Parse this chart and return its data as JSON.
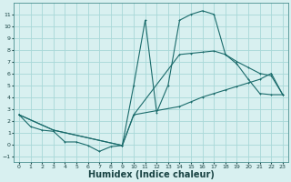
{
  "background_color": "#d8f0f0",
  "grid_color": "#a8d8d8",
  "line_color": "#1a6b6b",
  "xlabel": "Humidex (Indice chaleur)",
  "xlabel_fontsize": 7,
  "ylim": [
    -1.5,
    12
  ],
  "xlim": [
    -0.5,
    23.5
  ],
  "yticks": [
    -1,
    0,
    1,
    2,
    3,
    4,
    5,
    6,
    7,
    8,
    9,
    10,
    11
  ],
  "xticks": [
    0,
    1,
    2,
    3,
    4,
    5,
    6,
    7,
    8,
    9,
    10,
    11,
    12,
    13,
    14,
    15,
    16,
    17,
    18,
    19,
    20,
    21,
    22,
    23
  ],
  "curve1_x": [
    0,
    1,
    2,
    3,
    4,
    5,
    6,
    7,
    8,
    9,
    10,
    11,
    12,
    13,
    14,
    15,
    16,
    17,
    18,
    19,
    20,
    21,
    22,
    23
  ],
  "curve1_y": [
    2.5,
    1.5,
    1.2,
    1.1,
    0.2,
    0.2,
    -0.1,
    -0.6,
    -0.2,
    -0.1,
    5.0,
    10.5,
    2.7,
    5.0,
    10.5,
    11.0,
    11.3,
    11.0,
    7.6,
    6.8,
    5.5,
    4.3,
    4.2,
    4.2
  ],
  "curve2_x": [
    0,
    3,
    9,
    10,
    14,
    15,
    16,
    17,
    18,
    19,
    20,
    21,
    22,
    23
  ],
  "curve2_y": [
    2.5,
    1.2,
    -0.1,
    2.5,
    3.2,
    3.6,
    4.0,
    4.3,
    4.6,
    4.9,
    5.2,
    5.5,
    6.0,
    4.2
  ],
  "curve3_x": [
    0,
    3,
    9,
    10,
    14,
    15,
    16,
    17,
    18,
    19,
    20,
    21,
    22,
    23
  ],
  "curve3_y": [
    2.5,
    1.2,
    -0.1,
    2.5,
    7.6,
    7.7,
    7.8,
    7.9,
    7.6,
    7.0,
    6.5,
    6.0,
    5.8,
    4.2
  ]
}
